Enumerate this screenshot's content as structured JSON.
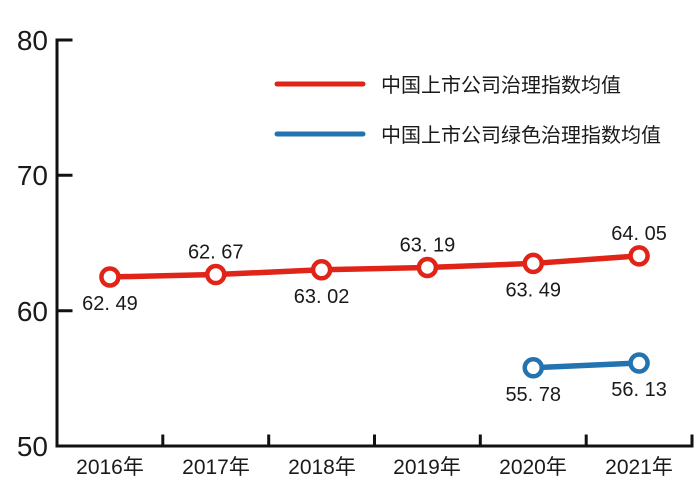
{
  "chart_data": {
    "type": "line",
    "title": "",
    "categories": [
      "2016年",
      "2017年",
      "2018年",
      "2019年",
      "2020年",
      "2021年"
    ],
    "y_ticks": [
      50,
      60,
      70,
      80
    ],
    "ylim": [
      50,
      80
    ],
    "grid": false,
    "legend_position": "top-center-inside",
    "marker": "open-circle",
    "axis_color": "#111111",
    "text_color": "#1a1a1a",
    "series": [
      {
        "name": "中国上市公司治理指数均值",
        "color": "#e02417",
        "start_index": 0,
        "values": [
          62.49,
          62.67,
          63.02,
          63.19,
          63.49,
          64.05
        ],
        "point_labels": [
          "62. 49",
          "62. 67",
          "63. 02",
          "63. 19",
          "63. 49",
          "64. 05"
        ],
        "label_positions": [
          "below",
          "above",
          "below",
          "above",
          "below",
          "above"
        ]
      },
      {
        "name": "中国上市公司绿色治理指数均值",
        "color": "#2273b0",
        "start_index": 4,
        "values": [
          55.78,
          56.13
        ],
        "point_labels": [
          "55. 78",
          "56. 13"
        ],
        "label_positions": [
          "below",
          "below"
        ]
      }
    ]
  }
}
